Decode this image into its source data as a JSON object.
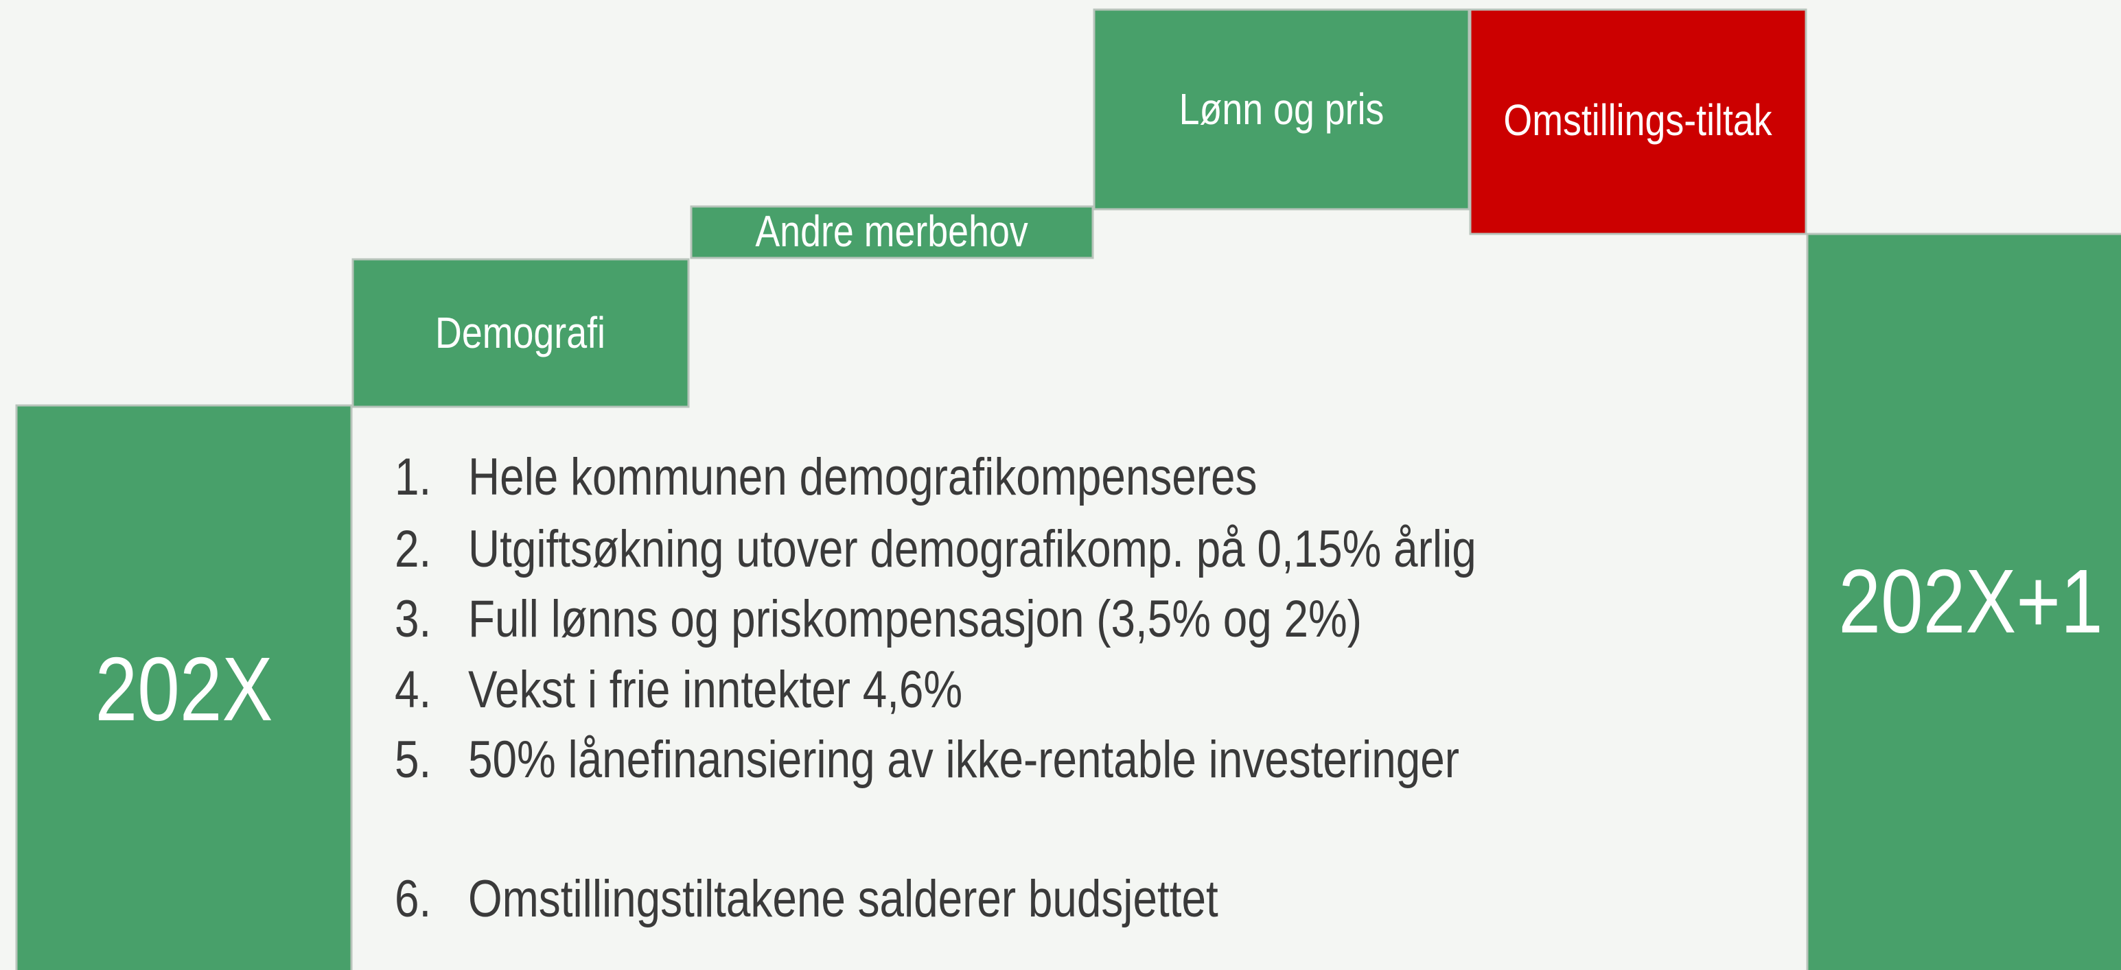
{
  "blocks": [
    {
      "label": "202X"
    },
    {
      "label": "Demografi"
    },
    {
      "label": "Andre merbehov"
    },
    {
      "label": "Lønn og pris"
    },
    {
      "label": "Omstillings-tiltak"
    },
    {
      "label": "202X+1"
    }
  ],
  "list": [
    {
      "number": "1.",
      "text": "Hele kommunen demografikompenseres"
    },
    {
      "number": "2.",
      "text": "Utgiftsøkning utover demografikomp. på 0,15% årlig"
    },
    {
      "number": "3.",
      "text": "Full lønns og priskompensasjon (3,5% og 2%)"
    },
    {
      "number": "4.",
      "text": "Vekst i frie inntekter 4,6%"
    },
    {
      "number": "5.",
      "text": "50% lånefinansiering av ikke-rentable investeringer"
    },
    {
      "number": "6.",
      "text": "Omstillingstiltakene salderer budsjettet"
    }
  ]
}
